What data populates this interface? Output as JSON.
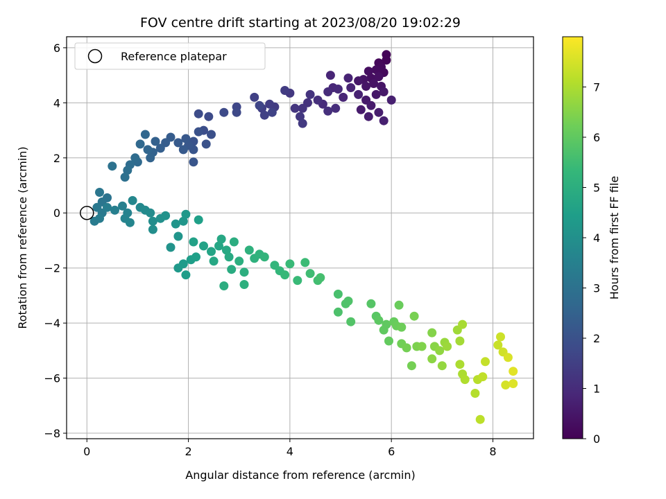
{
  "chart_data": {
    "type": "scatter",
    "title": "FOV centre drift starting at 2023/08/20 19:02:29",
    "xlabel": "Angular distance from reference (arcmin)",
    "ylabel": "Rotation from reference (arcmin)",
    "xlim": [
      -0.4,
      8.8
    ],
    "ylim": [
      -8.2,
      6.4
    ],
    "xticks": [
      0,
      2,
      4,
      6,
      8
    ],
    "yticks": [
      -8,
      -6,
      -4,
      -2,
      0,
      2,
      4,
      6
    ],
    "grid": true,
    "legend": {
      "position": "top-left",
      "entries": [
        "Reference platepar"
      ]
    },
    "reference_point": {
      "x": 0,
      "y": 0
    },
    "colorbar": {
      "label": "Hours from first FF file",
      "colormap": "viridis",
      "range": [
        0,
        8
      ],
      "ticks": [
        0,
        1,
        2,
        3,
        4,
        5,
        6,
        7
      ]
    },
    "points": [
      [
        5.9,
        5.75,
        0.1
      ],
      [
        5.9,
        5.55,
        0.1
      ],
      [
        5.75,
        5.45,
        0.15
      ],
      [
        5.8,
        5.3,
        0.2
      ],
      [
        5.85,
        5.1,
        0.2
      ],
      [
        5.7,
        5.2,
        0.25
      ],
      [
        5.55,
        5.15,
        0.3
      ],
      [
        5.6,
        4.9,
        0.3
      ],
      [
        5.75,
        4.95,
        0.35
      ],
      [
        5.45,
        4.85,
        0.4
      ],
      [
        5.65,
        4.7,
        0.4
      ],
      [
        5.5,
        4.6,
        0.45
      ],
      [
        5.8,
        4.6,
        0.45
      ],
      [
        5.35,
        4.8,
        0.5
      ],
      [
        5.7,
        4.3,
        0.5
      ],
      [
        5.85,
        4.4,
        0.55
      ],
      [
        5.5,
        4.1,
        0.55
      ],
      [
        5.6,
        3.9,
        0.6
      ],
      [
        5.4,
        3.75,
        0.6
      ],
      [
        5.75,
        3.65,
        0.65
      ],
      [
        5.55,
        3.5,
        0.65
      ],
      [
        5.85,
        3.35,
        0.7
      ],
      [
        6.0,
        4.1,
        0.7
      ],
      [
        5.35,
        4.3,
        0.75
      ],
      [
        5.2,
        4.55,
        0.8
      ],
      [
        5.15,
        4.9,
        0.8
      ],
      [
        5.05,
        4.2,
        0.85
      ],
      [
        4.8,
        5.0,
        0.85
      ],
      [
        4.85,
        4.55,
        0.9
      ],
      [
        4.95,
        4.5,
        0.95
      ],
      [
        4.75,
        4.4,
        1.0
      ],
      [
        4.65,
        3.95,
        1.0
      ],
      [
        4.9,
        3.8,
        1.05
      ],
      [
        4.75,
        3.7,
        1.1
      ],
      [
        4.55,
        4.1,
        1.1
      ],
      [
        4.35,
        4.0,
        1.15
      ],
      [
        4.25,
        3.8,
        1.2
      ],
      [
        4.4,
        4.3,
        1.2
      ],
      [
        4.1,
        3.8,
        1.25
      ],
      [
        4.0,
        4.35,
        1.3
      ],
      [
        4.2,
        3.5,
        1.3
      ],
      [
        4.25,
        3.25,
        1.35
      ],
      [
        3.9,
        4.45,
        1.4
      ],
      [
        3.7,
        3.85,
        1.4
      ],
      [
        3.6,
        3.95,
        1.45
      ],
      [
        3.45,
        3.8,
        1.5
      ],
      [
        3.5,
        3.55,
        1.55
      ],
      [
        3.3,
        4.2,
        1.55
      ],
      [
        3.65,
        3.65,
        1.6
      ],
      [
        3.4,
        3.9,
        1.65
      ],
      [
        2.95,
        3.85,
        1.7
      ],
      [
        2.95,
        3.65,
        1.75
      ],
      [
        2.7,
        3.65,
        1.8
      ],
      [
        2.4,
        3.5,
        1.8
      ],
      [
        2.2,
        3.6,
        1.85
      ],
      [
        2.3,
        3.0,
        1.9
      ],
      [
        2.45,
        2.85,
        1.95
      ],
      [
        2.2,
        2.95,
        2.0
      ],
      [
        2.35,
        2.5,
        2.0
      ],
      [
        2.1,
        2.6,
        2.05
      ],
      [
        2.1,
        2.3,
        2.1
      ],
      [
        2.1,
        1.85,
        2.1
      ],
      [
        2.0,
        2.45,
        2.15
      ],
      [
        1.95,
        2.7,
        2.2
      ],
      [
        1.8,
        2.55,
        2.25
      ],
      [
        1.9,
        2.3,
        2.25
      ],
      [
        1.65,
        2.75,
        2.3
      ],
      [
        1.55,
        2.55,
        2.35
      ],
      [
        1.45,
        2.35,
        2.4
      ],
      [
        1.35,
        2.6,
        2.45
      ],
      [
        1.3,
        2.2,
        2.5
      ],
      [
        1.25,
        2.0,
        2.55
      ],
      [
        1.2,
        2.3,
        2.6
      ],
      [
        1.15,
        2.85,
        2.65
      ],
      [
        1.05,
        2.5,
        2.7
      ],
      [
        1.0,
        1.85,
        2.75
      ],
      [
        0.95,
        2.0,
        2.8
      ],
      [
        0.85,
        1.75,
        2.85
      ],
      [
        0.8,
        1.55,
        2.9
      ],
      [
        0.75,
        1.3,
        2.95
      ],
      [
        0.5,
        1.7,
        3.0
      ],
      [
        0.4,
        0.55,
        3.05
      ],
      [
        0.3,
        0.4,
        3.1
      ],
      [
        0.25,
        0.75,
        3.15
      ],
      [
        0.2,
        0.2,
        3.2
      ],
      [
        0.3,
        0.0,
        3.25
      ],
      [
        0.15,
        -0.3,
        3.3
      ],
      [
        0.25,
        -0.2,
        3.35
      ],
      [
        0.4,
        0.2,
        3.4
      ],
      [
        0.55,
        0.1,
        3.45
      ],
      [
        0.7,
        0.25,
        3.5
      ],
      [
        0.8,
        0.0,
        3.55
      ],
      [
        0.75,
        -0.2,
        3.6
      ],
      [
        0.85,
        -0.35,
        3.65
      ],
      [
        0.9,
        0.45,
        3.7
      ],
      [
        1.05,
        0.2,
        3.75
      ],
      [
        1.15,
        0.1,
        3.8
      ],
      [
        1.25,
        0.0,
        3.85
      ],
      [
        1.3,
        -0.3,
        3.9
      ],
      [
        1.3,
        -0.6,
        3.95
      ],
      [
        1.45,
        -0.2,
        4.0
      ],
      [
        1.55,
        -0.1,
        4.05
      ],
      [
        1.65,
        -1.25,
        4.1
      ],
      [
        1.75,
        -0.4,
        4.15
      ],
      [
        1.8,
        -0.85,
        4.15
      ],
      [
        1.9,
        -0.3,
        4.2
      ],
      [
        1.95,
        -0.05,
        4.25
      ],
      [
        1.8,
        -2.0,
        4.3
      ],
      [
        1.9,
        -1.85,
        4.35
      ],
      [
        1.95,
        -2.25,
        4.4
      ],
      [
        2.05,
        -1.7,
        4.45
      ],
      [
        2.15,
        -1.6,
        4.5
      ],
      [
        2.2,
        -0.25,
        4.5
      ],
      [
        2.1,
        -1.05,
        4.55
      ],
      [
        2.3,
        -1.2,
        4.6
      ],
      [
        2.45,
        -1.4,
        4.65
      ],
      [
        2.6,
        -1.2,
        4.7
      ],
      [
        2.5,
        -1.75,
        4.75
      ],
      [
        2.65,
        -0.95,
        4.75
      ],
      [
        2.75,
        -1.35,
        4.8
      ],
      [
        2.8,
        -1.6,
        4.85
      ],
      [
        2.85,
        -2.05,
        4.9
      ],
      [
        2.7,
        -2.65,
        4.95
      ],
      [
        2.9,
        -1.05,
        4.95
      ],
      [
        3.0,
        -1.75,
        5.0
      ],
      [
        3.1,
        -2.15,
        5.0
      ],
      [
        3.1,
        -2.6,
        5.05
      ],
      [
        3.2,
        -1.35,
        5.1
      ],
      [
        3.3,
        -1.65,
        5.1
      ],
      [
        3.4,
        -1.5,
        5.15
      ],
      [
        3.5,
        -1.6,
        5.2
      ],
      [
        3.7,
        -1.9,
        5.25
      ],
      [
        3.8,
        -2.1,
        5.3
      ],
      [
        3.9,
        -2.25,
        5.35
      ],
      [
        4.0,
        -1.85,
        5.4
      ],
      [
        4.15,
        -2.45,
        5.4
      ],
      [
        4.3,
        -1.8,
        5.45
      ],
      [
        4.4,
        -2.2,
        5.5
      ],
      [
        4.55,
        -2.45,
        5.55
      ],
      [
        4.6,
        -2.35,
        5.6
      ],
      [
        4.95,
        -2.95,
        5.65
      ],
      [
        4.95,
        -3.6,
        5.7
      ],
      [
        5.1,
        -3.3,
        5.75
      ],
      [
        5.15,
        -3.2,
        5.75
      ],
      [
        5.2,
        -3.95,
        5.8
      ],
      [
        5.6,
        -3.3,
        5.85
      ],
      [
        5.7,
        -3.75,
        5.9
      ],
      [
        5.75,
        -3.9,
        5.95
      ],
      [
        5.85,
        -4.25,
        6.0
      ],
      [
        5.9,
        -4.05,
        6.0
      ],
      [
        5.95,
        -4.65,
        6.05
      ],
      [
        6.05,
        -3.95,
        6.1
      ],
      [
        6.1,
        -4.1,
        6.15
      ],
      [
        6.15,
        -3.35,
        6.15
      ],
      [
        6.2,
        -4.15,
        6.2
      ],
      [
        6.2,
        -4.75,
        6.25
      ],
      [
        6.3,
        -4.9,
        6.3
      ],
      [
        6.4,
        -5.55,
        6.3
      ],
      [
        6.45,
        -3.75,
        6.35
      ],
      [
        6.5,
        -4.85,
        6.4
      ],
      [
        6.6,
        -4.85,
        6.45
      ],
      [
        6.8,
        -4.35,
        6.5
      ],
      [
        6.85,
        -4.85,
        6.55
      ],
      [
        6.8,
        -5.3,
        6.6
      ],
      [
        6.95,
        -5.0,
        6.65
      ],
      [
        7.0,
        -5.55,
        6.7
      ],
      [
        7.05,
        -4.7,
        6.75
      ],
      [
        7.1,
        -4.85,
        6.8
      ],
      [
        7.3,
        -4.25,
        6.85
      ],
      [
        7.35,
        -4.65,
        6.9
      ],
      [
        7.4,
        -4.05,
        6.95
      ],
      [
        7.35,
        -5.5,
        7.0
      ],
      [
        7.4,
        -5.85,
        7.0
      ],
      [
        7.45,
        -6.05,
        7.05
      ],
      [
        7.65,
        -6.55,
        7.1
      ],
      [
        7.7,
        -6.05,
        7.15
      ],
      [
        7.75,
        -7.5,
        7.2
      ],
      [
        7.8,
        -5.95,
        7.25
      ],
      [
        7.85,
        -5.4,
        7.3
      ],
      [
        8.1,
        -4.8,
        7.35
      ],
      [
        8.15,
        -4.5,
        7.4
      ],
      [
        8.2,
        -5.05,
        7.45
      ],
      [
        8.25,
        -6.25,
        7.5
      ],
      [
        8.3,
        -5.25,
        7.55
      ],
      [
        8.4,
        -6.2,
        7.6
      ],
      [
        8.4,
        -5.75,
        7.65
      ]
    ]
  }
}
